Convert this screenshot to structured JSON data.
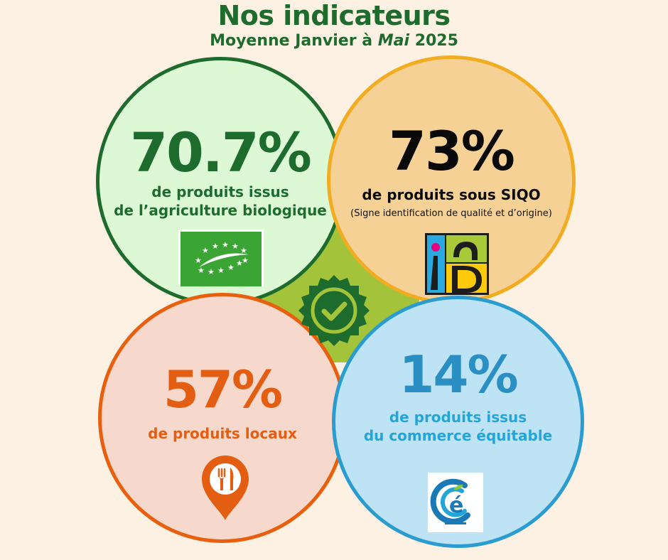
{
  "header": {
    "title": "Nos indicateurs",
    "subtitle_prefix": "Moyenne Janvier à ",
    "subtitle_italic": "Mai",
    "subtitle_suffix": " 2025"
  },
  "indicators": [
    {
      "value": "70.7%",
      "line1": "de produits issus",
      "line2": "de l’agriculture biologique",
      "color": "#1e6b2e",
      "fill": "#ddf8d5",
      "icon": "eu-organic-leaf-icon"
    },
    {
      "value": "73%",
      "line1": "de produits sous SIQO",
      "note": "(Signe identification de qualité et d’origine)",
      "color": "#0a0a0a",
      "fill": "#f5d196",
      "border": "#f2ac22",
      "icon": "inao-logo-icon"
    },
    {
      "value": "57%",
      "line1": "de produits locaux",
      "color": "#e35d12",
      "fill": "#f6d9cc",
      "icon": "local-pin-cutlery-icon"
    },
    {
      "value": "14%",
      "line1": "de produits issus",
      "line2": "du commerce équitable",
      "color": "#2b8fc4",
      "fill": "#bee3f5",
      "icon": "commerce-equitable-icon"
    }
  ],
  "badge": {
    "icon": "checkmark-badge-icon",
    "color": "#1e6b2e",
    "accent": "#a3c43a"
  }
}
